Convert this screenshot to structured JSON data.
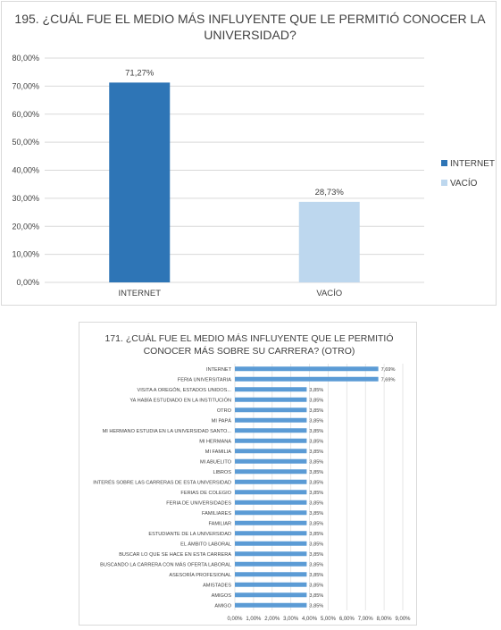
{
  "chart_data": [
    {
      "type": "bar",
      "title_lines": [
        "195. ¿CUÁL FUE EL MEDIO MÁS INFLUYENTE QUE LE PERMITIÓ CONOCER LA",
        "UNIVERSIDAD?"
      ],
      "categories": [
        "INTERNET",
        "VACÍO"
      ],
      "values": [
        71.27,
        28.73
      ],
      "value_labels": [
        "71,27%",
        "28,73%"
      ],
      "colors": [
        "#2e75b6",
        "#bdd7ee"
      ],
      "yticks": [
        "0,00%",
        "10,00%",
        "20,00%",
        "30,00%",
        "40,00%",
        "50,00%",
        "60,00%",
        "70,00%",
        "80,00%"
      ],
      "ylim": [
        0,
        80
      ],
      "legend": [
        {
          "label": "INTERNET",
          "color": "#2e75b6"
        },
        {
          "label": "VACÍO",
          "color": "#bdd7ee"
        }
      ],
      "legend_position": "right",
      "grid": true
    },
    {
      "type": "bar",
      "orientation": "horizontal",
      "title_lines": [
        "171. ¿CUÁL FUE EL MEDIO MÁS INFLUYENTE QUE LE PERMITIÓ",
        "CONOCER MÁS SOBRE SU CARRERA? (OTRO)"
      ],
      "categories": [
        "INTERNET",
        "FERIA UNIVERSITARIA",
        "VISITA A OREGÓN, ESTADOS UNIDOS...",
        "YA HABÍA ESTUDIADO EN LA INSTITUCIÓN",
        "OTRO",
        "MI PAPÁ",
        "MI HERMANO ESTUDIA EN LA UNIVERSIDAD SANTO...",
        "MI HERMANA",
        "MI FAMILIA",
        "MI ABUELITO",
        "LIBROS",
        "INTERÉS SOBRE LAS CARRERAS DE ESTA UNIVERSIDAD",
        "FERIAS DE COLEGIO",
        "FERIA DE UNIVERSIDADES",
        "FAMILIARES",
        "FAMILIAR",
        "ESTUDIANTE DE LA UNIVERSIDAD",
        "EL ÁMBITO LABORAL",
        "BUSCAR LO QUE SE HACE EN ESTA CARRERA",
        "BUSCANDO LA CARRERA CON MÁS OFERTA LABORAL",
        "ASESORÍA PROFESIONAL",
        "AMISTADES",
        "AMIGOS",
        "AMIGO"
      ],
      "values": [
        7.69,
        7.69,
        3.85,
        3.85,
        3.85,
        3.85,
        3.85,
        3.85,
        3.85,
        3.85,
        3.85,
        3.85,
        3.85,
        3.85,
        3.85,
        3.85,
        3.85,
        3.85,
        3.85,
        3.85,
        3.85,
        3.85,
        3.85,
        3.85
      ],
      "value_labels": [
        "7,69%",
        "7,69%",
        "3,85%",
        "3,85%",
        "3,85%",
        "3,85%",
        "3,85%",
        "3,85%",
        "3,85%",
        "3,85%",
        "3,85%",
        "3,85%",
        "3,85%",
        "3,85%",
        "3,85%",
        "3,85%",
        "3,85%",
        "3,85%",
        "3,85%",
        "3,85%",
        "3,85%",
        "3,85%",
        "3,85%",
        "3,85%"
      ],
      "color": "#5b9bd5",
      "xticks": [
        "0,00%",
        "1,00%",
        "2,00%",
        "3,00%",
        "4,00%",
        "5,00%",
        "6,00%",
        "7,00%",
        "8,00%",
        "9,00%"
      ],
      "xlim": [
        0,
        9
      ],
      "grid": true
    }
  ]
}
